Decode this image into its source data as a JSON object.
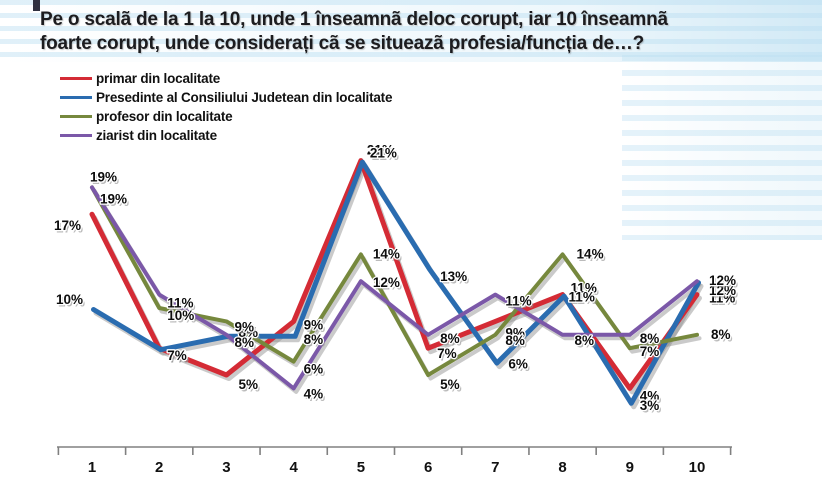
{
  "title": {
    "line1": "Pe o scalã de la 1 la 10, unde 1 înseamnã deloc corupt, iar 10 înseamnã",
    "line2": "foarte corupt, unde considerați cã se situeazã profesia/funcția de…?"
  },
  "legend": [
    {
      "label": "primar din localitate",
      "color": "#d42b35"
    },
    {
      "label": "Presedinte al Consiliului Judetean din localitate",
      "color": "#2a6cb0"
    },
    {
      "label": "profesor din localitate",
      "color": "#76883d"
    },
    {
      "label": "ziarist din localitate",
      "color": "#7b58a8"
    }
  ],
  "chart_data": {
    "type": "line",
    "title": "Pe o scalã de la 1 la 10, unde 1 înseamnã deloc corupt, iar 10 înseamnã foarte corupt, unde considerați cã se situeazã profesia/funcția de…?",
    "x": [
      1,
      2,
      3,
      4,
      5,
      6,
      7,
      8,
      9,
      10
    ],
    "unit": "%",
    "series": [
      {
        "name": "primar din localitate",
        "color": "#d42b35",
        "values": [
          17,
          7,
          5,
          9,
          21,
          7,
          9,
          11,
          4,
          11
        ]
      },
      {
        "name": "Presedinte al Consiliului Judetean din localitate",
        "color": "#2a6cb0",
        "values": [
          10,
          7,
          8,
          8,
          21,
          13,
          6,
          11,
          3,
          12
        ]
      },
      {
        "name": "profesor din localitate",
        "color": "#76883d",
        "values": [
          19,
          10,
          9,
          6,
          14,
          5,
          8,
          14,
          7,
          8
        ]
      },
      {
        "name": "ziarist din localitate",
        "color": "#7b58a8",
        "values": [
          19,
          11,
          8,
          4,
          12,
          8,
          11,
          8,
          8,
          12
        ]
      }
    ],
    "ylim": [
      0,
      23
    ],
    "grid": false,
    "data_labels": true,
    "legend_position": "top-left",
    "axis_color": "#808080"
  }
}
